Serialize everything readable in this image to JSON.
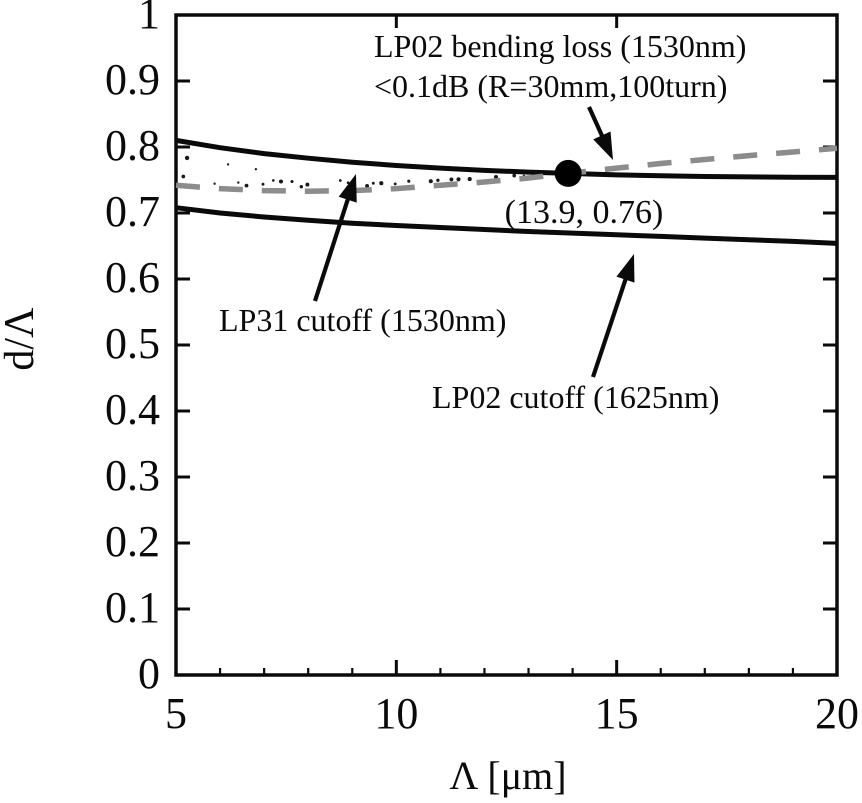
{
  "figure": {
    "background": "#ffffff",
    "ink_color": "#0a0a0a",
    "dash_color": "#8c8c8c"
  },
  "chart_data": {
    "type": "line",
    "title": "",
    "xlabel": "Λ [μm]",
    "ylabel": "d/Λ",
    "xlim": [
      5,
      20
    ],
    "ylim": [
      0,
      1
    ],
    "grid": false,
    "legend": "none",
    "x_ticks": [
      5,
      10,
      15,
      20
    ],
    "x_tick_labels": [
      "5",
      "10",
      "15",
      "20"
    ],
    "x_minor_tick_step": 1,
    "y_ticks": [
      0,
      0.1,
      0.2,
      0.3,
      0.4,
      0.5,
      0.6,
      0.7,
      0.8,
      0.9,
      1
    ],
    "y_tick_labels": [
      "0",
      "0.1",
      "0.2",
      "0.3",
      "0.4",
      "0.5",
      "0.6",
      "0.7",
      "0.8",
      "0.9",
      "1"
    ],
    "series": [
      {
        "name": "upper solid boundary curve",
        "style": "solid",
        "color": "#0a0a0a",
        "width": 5,
        "x": [
          5,
          6,
          7,
          8,
          9,
          10,
          11,
          12,
          13,
          13.9,
          15,
          16,
          17,
          18,
          19,
          20
        ],
        "y": [
          0.81,
          0.799,
          0.79,
          0.783,
          0.777,
          0.772,
          0.768,
          0.7645,
          0.762,
          0.76,
          0.7578,
          0.7563,
          0.7553,
          0.7547,
          0.7543,
          0.754
        ]
      },
      {
        "name": "LP02 bending loss (1530nm) <0.1dB (R=30mm,100turn) - gray dashed",
        "style": "dashed",
        "color": "#8c8c8c",
        "width": 5.5,
        "x": [
          5,
          6,
          7,
          8,
          9,
          10,
          11,
          12,
          13,
          13.9,
          15,
          16,
          17,
          18,
          19,
          20
        ],
        "y": [
          0.742,
          0.737,
          0.734,
          0.733,
          0.734,
          0.737,
          0.742,
          0.747,
          0.753,
          0.76,
          0.768,
          0.775,
          0.781,
          0.787,
          0.7925,
          0.798
        ]
      },
      {
        "name": "LP02 cutoff (1625nm) - lower solid",
        "style": "solid",
        "color": "#0a0a0a",
        "width": 5,
        "x": [
          5,
          6,
          7,
          8,
          9,
          10,
          11,
          12,
          13,
          14,
          15,
          16,
          17,
          18,
          19,
          20
        ],
        "y": [
          0.708,
          0.7,
          0.694,
          0.689,
          0.6845,
          0.681,
          0.678,
          0.675,
          0.672,
          0.6695,
          0.667,
          0.6645,
          0.662,
          0.6595,
          0.657,
          0.654
        ]
      }
    ],
    "stipple_band": {
      "description": "sparse dots between upper solid curve and gray dashed curve (LP31 cutoff region)",
      "x_range": [
        5.1,
        13.2
      ]
    },
    "design_point": {
      "x": 13.9,
      "y": 0.76,
      "label": "(13.9, 0.76)"
    },
    "annotations": [
      {
        "id": "bending",
        "lines": [
          "LP02 bending loss (1530nm)",
          "<0.1dB (R=30mm,100turn)"
        ]
      },
      {
        "id": "lp31",
        "lines": [
          "LP31 cutoff (1530nm)"
        ]
      },
      {
        "id": "lp02",
        "lines": [
          "LP02 cutoff (1625nm)"
        ]
      }
    ]
  }
}
